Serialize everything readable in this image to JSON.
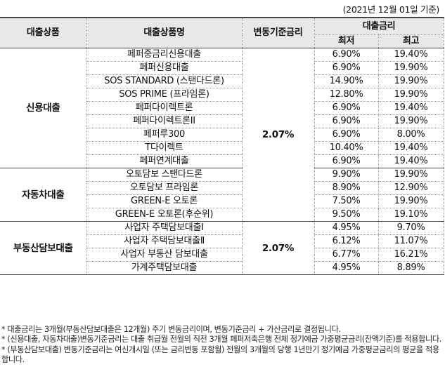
{
  "base_date": "(2021년 12월 01일 기준)",
  "headers": {
    "product": "대출상품",
    "product_name": "대출상품명",
    "base_rate": "변동기준금리",
    "loan_rate": "대출금리",
    "min": "최저",
    "max": "최고"
  },
  "groups": [
    {
      "category": "신용대출",
      "base_rate": "2.07%",
      "rows": [
        {
          "name": "페퍼중금리신용대출",
          "min": "6.90%",
          "max": "19.40%"
        },
        {
          "name": "페퍼신용대출",
          "min": "6.90%",
          "max": "19.90%"
        },
        {
          "name": "SOS STANDARD (스탠다드론)",
          "min": "14.90%",
          "max": "19.90%"
        },
        {
          "name": "SOS PRIME (프라임론)",
          "min": "12.80%",
          "max": "19.90%"
        },
        {
          "name": "페퍼다이렉트론",
          "min": "6.90%",
          "max": "19.40%"
        },
        {
          "name": "페퍼다이렉트론II",
          "min": "6.90%",
          "max": "19.90%"
        },
        {
          "name": "페퍼루300",
          "min": "6.90%",
          "max": "8.00%"
        },
        {
          "name": "T다이렉트",
          "min": "10.40%",
          "max": "19.40%"
        },
        {
          "name": "페퍼연계대출",
          "min": "6.90%",
          "max": "19.40%"
        }
      ]
    },
    {
      "category": "자동차대출",
      "rows": [
        {
          "name": "오토담보 스탠다드론",
          "min": "9.90%",
          "max": "19.90%"
        },
        {
          "name": "오토담보 프라임론",
          "min": "8.90%",
          "max": "12.90%"
        },
        {
          "name": "GREEN-E 오토론",
          "min": "7.50%",
          "max": "19.90%"
        },
        {
          "name": "GREEN-E 오토론(후순위)",
          "min": "9.50%",
          "max": "19.10%"
        }
      ]
    },
    {
      "category": "부동산담보대출",
      "base_rate": "2.07%",
      "rows": [
        {
          "name": "사업자 주택담보대출Ⅰ",
          "min": "4.95%",
          "max": "9.70%"
        },
        {
          "name": "사업자 주택담보대출Ⅱ",
          "min": "6.12%",
          "max": "11.07%"
        },
        {
          "name": "사업자 부동산 담보대출",
          "min": "6.77%",
          "max": "16.21%"
        },
        {
          "name": "가계주택담보대출",
          "min": "4.95%",
          "max": "8.89%"
        }
      ]
    }
  ],
  "notes": [
    "* 대출금리는 3개월(부동산담보대출은 12개월) 주기 변동금리이며, 변동기준금리 + 가산금리로 결정됩니다.",
    "* (신용대출, 자동차대출)변동기준금리는 대출 취급월 전월의 직전 3개월 페퍼저축은행 전체 정기예금 가중평균금리(잔액기준)를 적용합니다.",
    "* (부동산담보대출) 변동기준금리는 여신개시일 (또는 금리변동 포함월) 전월의 3개월의 당행 1년만기 정기예금 가중평균금리의 평균을 적용합니다."
  ]
}
